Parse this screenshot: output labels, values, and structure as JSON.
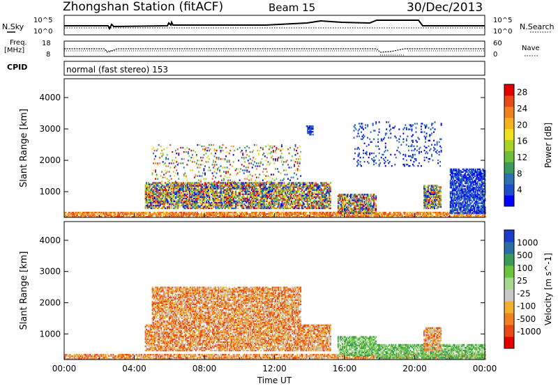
{
  "header": {
    "station": "Zhongshan Station (fitACF)",
    "beam": "Beam 15",
    "date": "30/Dec/2013"
  },
  "noise_panel": {
    "left_label": "N.Sky",
    "right_label": "N.Search",
    "left_ticks": [
      "10^5",
      "10^0"
    ],
    "right_ticks": [
      "10^5",
      "10^0"
    ]
  },
  "freq_panel": {
    "left_label_1": "Freq.",
    "left_label_2": "[MHz]",
    "right_label": "Nave",
    "left_ticks": [
      "18",
      "8"
    ],
    "right_ticks": [
      "60",
      "0"
    ]
  },
  "cpid": {
    "label": "CPID",
    "text": "normal (fast stereo) 153"
  },
  "chart_data": [
    {
      "type": "heatmap",
      "quantity": "Power",
      "ylabel": "Slant Range [km]",
      "xlabel": "Time UT",
      "x_ticks": [
        "00:00",
        "04:00",
        "08:00",
        "12:00",
        "16:00",
        "20:00",
        "00:00"
      ],
      "xlim_hours": [
        0,
        24
      ],
      "y_ticks": [
        1000,
        2000,
        3000,
        4000
      ],
      "ylim": [
        180,
        4600
      ],
      "colorbar": {
        "label": "Power [dB]",
        "ticks": [
          "4",
          "8",
          "12",
          "16",
          "20",
          "24",
          "28"
        ],
        "colors": [
          "#0000ff",
          "#1f4fc8",
          "#2e6fb0",
          "#3c9a5c",
          "#6cbe3c",
          "#a8d428",
          "#f0e020",
          "#f5b020",
          "#f08020",
          "#e84818",
          "#e00000"
        ]
      },
      "echo_regions": [
        {
          "t0": 0.0,
          "t1": 24.0,
          "r0": 180,
          "r1": 330,
          "level": "high"
        },
        {
          "t0": 4.6,
          "t1": 15.2,
          "r0": 450,
          "r1": 1300,
          "level": "mixed"
        },
        {
          "t0": 5.0,
          "t1": 13.5,
          "r0": 1300,
          "r1": 2500,
          "level": "streaks"
        },
        {
          "t0": 13.8,
          "t1": 14.2,
          "r0": 2800,
          "r1": 3100,
          "level": "low"
        },
        {
          "t0": 15.6,
          "t1": 17.8,
          "r0": 300,
          "r1": 900,
          "level": "mixed"
        },
        {
          "t0": 16.5,
          "t1": 21.5,
          "r0": 1800,
          "r1": 3200,
          "level": "scattered"
        },
        {
          "t0": 20.5,
          "t1": 21.5,
          "r0": 450,
          "r1": 1200,
          "level": "mixed"
        },
        {
          "t0": 22.0,
          "t1": 24.0,
          "r0": 300,
          "r1": 1700,
          "level": "low"
        }
      ]
    },
    {
      "type": "heatmap",
      "quantity": "Velocity",
      "ylabel": "Slant Range [km]",
      "xlabel": "Time UT",
      "x_ticks": [
        "00:00",
        "04:00",
        "08:00",
        "12:00",
        "16:00",
        "20:00",
        "00:00"
      ],
      "xlim_hours": [
        0,
        24
      ],
      "y_ticks": [
        1000,
        2000,
        3000,
        4000
      ],
      "ylim": [
        180,
        4600
      ],
      "colorbar": {
        "label": "Velocity [m s^-1]",
        "ticks": [
          "1000",
          "500",
          "100",
          "25",
          "-25",
          "-100",
          "-500",
          "-1000"
        ],
        "colors": [
          "#1a3cc8",
          "#2a6ea8",
          "#3a9a58",
          "#6cc43c",
          "#a8d890",
          "#c8c8c8",
          "#f0b030",
          "#f08020",
          "#e84818",
          "#e00000"
        ]
      },
      "echo_regions": [
        {
          "t0": 0.0,
          "t1": 24.0,
          "r0": 180,
          "r1": 330,
          "level": "negative"
        },
        {
          "t0": 4.6,
          "t1": 15.2,
          "r0": 450,
          "r1": 1300,
          "level": "negative"
        },
        {
          "t0": 5.0,
          "t1": 13.5,
          "r0": 1300,
          "r1": 2500,
          "level": "negative"
        },
        {
          "t0": 15.6,
          "t1": 17.8,
          "r0": 300,
          "r1": 900,
          "level": "positive"
        },
        {
          "t0": 17.8,
          "t1": 24.0,
          "r0": 180,
          "r1": 650,
          "level": "positive"
        },
        {
          "t0": 20.5,
          "t1": 21.5,
          "r0": 450,
          "r1": 1200,
          "level": "negative"
        }
      ]
    }
  ]
}
